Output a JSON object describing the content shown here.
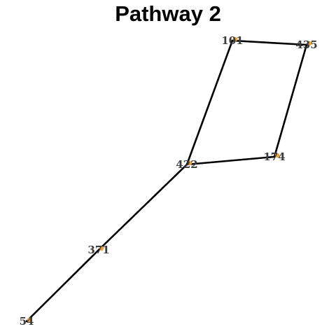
{
  "title": "Pathway 2",
  "colors": {
    "edge": "#000000",
    "node": "#f0a23a",
    "label": "#3c3c3c"
  },
  "nodes": [
    {
      "id": "101",
      "label": "101"
    },
    {
      "id": "435",
      "label": "435"
    },
    {
      "id": "174",
      "label": "174"
    },
    {
      "id": "422",
      "label": "422"
    },
    {
      "id": "371",
      "label": "371"
    },
    {
      "id": "54",
      "label": "54"
    }
  ],
  "edges": [
    {
      "from": "101",
      "to": "435"
    },
    {
      "from": "435",
      "to": "174"
    },
    {
      "from": "174",
      "to": "422"
    },
    {
      "from": "422",
      "to": "101"
    },
    {
      "from": "422",
      "to": "371"
    },
    {
      "from": "371",
      "to": "54"
    }
  ]
}
